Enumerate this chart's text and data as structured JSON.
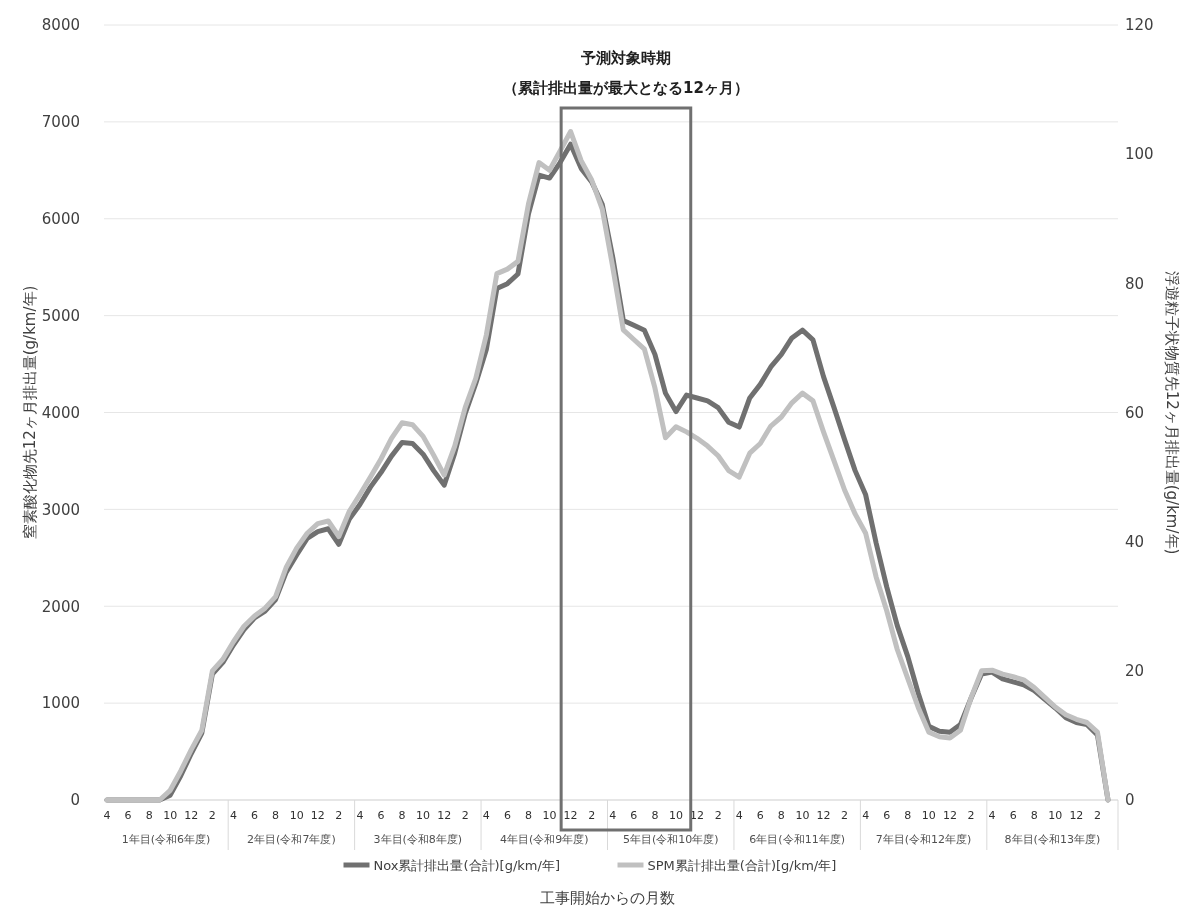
{
  "chart_data": {
    "type": "line",
    "xlabel": "工事開始からの月数",
    "ylabel": "窒素酸化物先12ヶ月排出量(g/km/年)",
    "y2label": "浮遊粒子状物質先12ヶ月排出量(g/km/年)",
    "categories": [
      "4",
      null,
      "6",
      null,
      "8",
      null,
      "10",
      null,
      "12",
      null,
      "2",
      null,
      "4",
      null,
      "6",
      null,
      "8",
      null,
      "10",
      null,
      "12",
      null,
      "2",
      null,
      "4",
      null,
      "6",
      null,
      "8",
      null,
      "10",
      null,
      "12",
      null,
      "2",
      null,
      "4",
      null,
      "6",
      null,
      "8",
      null,
      "10",
      null,
      "12",
      null,
      "2",
      null,
      "4",
      null,
      "6",
      null,
      "8",
      null,
      "10",
      null,
      "12",
      null,
      "2",
      null,
      "4",
      null,
      "6",
      null,
      "8",
      null,
      "10",
      null,
      "12",
      null,
      "2",
      null,
      "4",
      null,
      "6",
      null,
      "8",
      null,
      "10",
      null,
      "12",
      null,
      "2",
      null,
      "4",
      null,
      "6",
      null,
      "8",
      null,
      "10",
      null,
      "12",
      null,
      "2",
      null
    ],
    "series": [
      {
        "name": "Nox累計排出量(合計)[g/km/年]",
        "color": "#707070",
        "values": [
          0,
          0,
          0,
          0,
          0,
          0,
          50,
          250,
          480,
          690,
          1300,
          1420,
          1600,
          1760,
          1880,
          1950,
          2070,
          2350,
          2530,
          2700,
          2770,
          2800,
          2640,
          2900,
          3050,
          3230,
          3380,
          3550,
          3690,
          3680,
          3570,
          3400,
          3250,
          3580,
          3990,
          4300,
          4650,
          5280,
          5330,
          5430,
          6050,
          6450,
          6420,
          6580,
          6770,
          6520,
          6380,
          6150,
          5600,
          4950,
          4900,
          4850,
          4600,
          4200,
          4010,
          4180,
          4150,
          4120,
          4050,
          3900,
          3850,
          4150,
          4290,
          4470,
          4600,
          4770,
          4850,
          4750,
          4370,
          4050,
          3720,
          3400,
          3150,
          2650,
          2200,
          1800,
          1480,
          1100,
          760,
          710,
          700,
          780,
          1050,
          1300,
          1320,
          1250,
          1220,
          1190,
          1130,
          1040,
          950,
          850,
          800,
          780,
          670,
          0
        ]
      },
      {
        "name": "SPM累計排出量(合計)[g/km/年]",
        "color": "#c0c0c0",
        "axis": "y2",
        "values": [
          0,
          0,
          0,
          0,
          0,
          0,
          1.5,
          4.5,
          7.8,
          10.8,
          20,
          21.8,
          24.5,
          26.9,
          28.5,
          29.7,
          31.5,
          36,
          39,
          41.3,
          42.8,
          43.2,
          40.8,
          44.7,
          47.3,
          50,
          52.8,
          56,
          58.4,
          58.1,
          56.3,
          53.4,
          50.3,
          54.8,
          60.8,
          65.3,
          72,
          81.5,
          82.2,
          83.4,
          92.3,
          98.7,
          97.5,
          100.5,
          103.5,
          99,
          96,
          91.5,
          82.5,
          72.8,
          71.3,
          69.8,
          63.8,
          56.1,
          57.8,
          57,
          56,
          54.8,
          53.3,
          51,
          50,
          53.7,
          55.2,
          57.9,
          59.3,
          61.5,
          63,
          61.8,
          57,
          52.5,
          48,
          44.3,
          41.3,
          34.5,
          29.3,
          23.3,
          18.8,
          14.3,
          10.5,
          9.8,
          9.6,
          10.8,
          15.8,
          20,
          20.1,
          19.5,
          19.1,
          18.6,
          17.4,
          15.9,
          14.4,
          13.2,
          12.5,
          12,
          10.5,
          0
        ]
      }
    ],
    "ylim": [
      0,
      8000
    ],
    "yticks": [
      0,
      1000,
      2000,
      3000,
      4000,
      5000,
      6000,
      7000,
      8000
    ],
    "y2lim": [
      0,
      120
    ],
    "y2ticks": [
      0,
      20,
      40,
      60,
      80,
      100,
      120
    ],
    "annotations": [
      "予測対象時期",
      "（累計排出量が最大となる12ヶ月）",
      "1年目(令和6年度)",
      "2年目(令和7年度)",
      "3年目(令和8年度)",
      "4年目(令和9年度)",
      "5年目(令和10年度)",
      "6年目(令和11年度)",
      "7年目(令和12年度)",
      "8年目(令和13年度)"
    ],
    "grid": "y",
    "legend": "bottom",
    "line_style": "solid",
    "marker": "none"
  }
}
